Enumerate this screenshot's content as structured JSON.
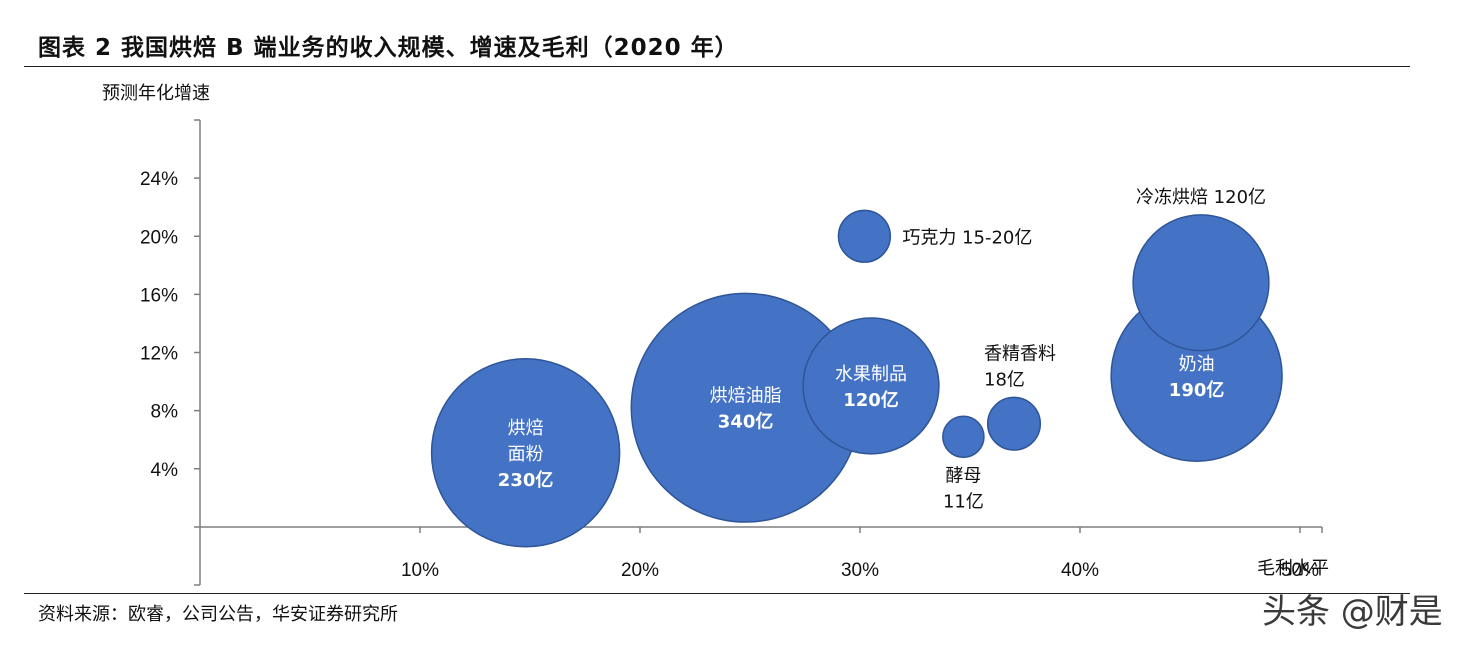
{
  "title": "图表 2 我国烘焙 B 端业务的收入规模、增速及毛利（2020 年）",
  "source": "资料来源：欧睿，公司公告，华安证券研究所",
  "watermark": "头条 @财是",
  "colors": {
    "bubble": "#4472C4",
    "bubble_stroke": "#2F5597",
    "axis": "#7f7f7f",
    "text": "#111111"
  },
  "chart_data": {
    "type": "scatter",
    "title": "",
    "xlabel": "毛利水平",
    "ylabel": "预测年化增速",
    "xlim": [
      0,
      51
    ],
    "ylim": [
      -4,
      28
    ],
    "x_ticks": [
      10,
      20,
      30,
      40,
      50
    ],
    "x_tick_labels": [
      "10%",
      "20%",
      "30%",
      "40%",
      "50%"
    ],
    "y_ticks": [
      4,
      8,
      12,
      16,
      20,
      24
    ],
    "y_tick_labels": [
      "4%",
      "8%",
      "12%",
      "16%",
      "20%",
      "24%"
    ],
    "grid": false,
    "points": [
      {
        "name": "烘焙面粉",
        "x": 14.8,
        "y": 5.1,
        "size": 230,
        "label_lines": [
          "烘焙",
          "面粉",
          "230亿"
        ],
        "label_pos": "inside"
      },
      {
        "name": "烘焙油脂",
        "x": 24.8,
        "y": 8.2,
        "size": 340,
        "label_lines": [
          "烘焙油脂",
          "340亿"
        ],
        "label_pos": "inside"
      },
      {
        "name": "水果制品",
        "x": 30.5,
        "y": 9.7,
        "size": 120,
        "label_lines": [
          "水果制品",
          "120亿"
        ],
        "label_pos": "inside"
      },
      {
        "name": "巧克力",
        "x": 30.2,
        "y": 20.0,
        "size": 17.5,
        "label_lines": [
          "巧克力 15-20亿"
        ],
        "label_pos": "right"
      },
      {
        "name": "酵母",
        "x": 34.7,
        "y": 6.2,
        "size": 11,
        "label_lines": [
          "酵母",
          "11亿"
        ],
        "label_pos": "below"
      },
      {
        "name": "香精香料",
        "x": 37.0,
        "y": 7.1,
        "size": 18,
        "label_lines": [
          "香精香料",
          "18亿"
        ],
        "label_pos": "above"
      },
      {
        "name": "冷冻烘焙",
        "x": 45.5,
        "y": 16.8,
        "size": 120,
        "label_lines": [
          "冷冻烘焙 120亿"
        ],
        "label_pos": "above"
      },
      {
        "name": "奶油",
        "x": 45.3,
        "y": 10.4,
        "size": 190,
        "label_lines": [
          "奶油",
          "190亿"
        ],
        "label_pos": "inside"
      }
    ]
  }
}
